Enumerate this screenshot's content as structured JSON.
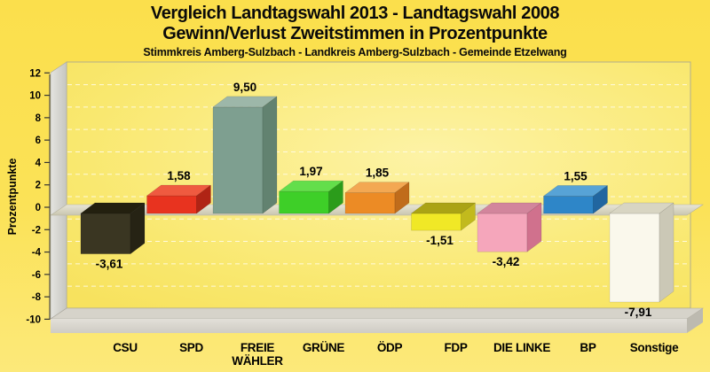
{
  "title": {
    "line1": "Vergleich Landtagswahl 2013 - Landtagswahl 2008",
    "line2": "Gewinn/Verlust Zweitstimmen in Prozentpunkte",
    "subtitle": "Stimmkreis Amberg-Sulzbach - Landkreis Amberg-Sulzbach - Gemeinde Etzelwang"
  },
  "colors": {
    "page_background_top": "#fbdf4c",
    "page_background_bottom": "#fce97a",
    "plot_background_light": "#fdf3a6",
    "plot_background_dark": "#f7e25e",
    "title_text": "#0a0a0a",
    "axis_text": "#000000",
    "wall_gray_light": "#e4e4e0",
    "wall_gray_dark": "#c6c6c0",
    "zero_plane_light": "#e8e5d6",
    "zero_plane_dark": "#c9c6b0",
    "gridline": "#fffce8"
  },
  "chart_data": {
    "type": "bar",
    "style": "3d-block-bars",
    "title": "Vergleich Landtagswahl 2013 - Landtagswahl 2008",
    "subtitle": "Gewinn/Verlust Zweitstimmen in Prozentpunkte",
    "caption": "Stimmkreis Amberg-Sulzbach - Landkreis Amberg-Sulzbach - Gemeinde Etzelwang",
    "categories": [
      "CSU",
      "SPD",
      "FREIE WÄHLER",
      "GRÜNE",
      "ÖDP",
      "FDP",
      "DIE LINKE",
      "BP",
      "Sonstige"
    ],
    "category_lines": [
      [
        "CSU"
      ],
      [
        "SPD"
      ],
      [
        "FREIE",
        "WÄHLER"
      ],
      [
        "GRÜNE"
      ],
      [
        "ÖDP"
      ],
      [
        "FDP"
      ],
      [
        "DIE LINKE"
      ],
      [
        "BP"
      ],
      [
        "Sonstige"
      ]
    ],
    "values": [
      -3.61,
      1.58,
      9.5,
      1.97,
      1.85,
      -1.51,
      -3.42,
      1.55,
      -7.91
    ],
    "value_labels": [
      "-3,61",
      "1,58",
      "9,50",
      "1,97",
      "1,85",
      "-1,51",
      "-3,42",
      "1,55",
      "-7,91"
    ],
    "bar_colors": [
      {
        "party": "CSU",
        "front": "#3a3622",
        "side": "#262314",
        "top": "#23200f"
      },
      {
        "party": "SPD",
        "front": "#e8331f",
        "side": "#b02415",
        "top": "#ef5a40"
      },
      {
        "party": "FREIE WÄHLER",
        "front": "#7e9f90",
        "side": "#628270",
        "top": "#9db7a9"
      },
      {
        "party": "GRÜNE",
        "front": "#3ecf28",
        "side": "#2b9c1b",
        "top": "#63de4b"
      },
      {
        "party": "ÖDP",
        "front": "#ec8b25",
        "side": "#c06c1b",
        "top": "#f3a852"
      },
      {
        "party": "FDP",
        "front": "#f0e826",
        "side": "#c2ba1d",
        "top": "#aaa315"
      },
      {
        "party": "DIE LINKE",
        "front": "#f5a6bb",
        "side": "#d0718d",
        "top": "#d2859c"
      },
      {
        "party": "BP",
        "front": "#2e86c8",
        "side": "#2166a0",
        "top": "#57a3d6"
      },
      {
        "party": "Sonstige",
        "front": "#faf8ec",
        "side": "#cbc8b6",
        "top": "#d8d5c2"
      }
    ],
    "xlabel": "",
    "ylabel": "Prozentpunkte",
    "ylim": [
      -10,
      12
    ],
    "yticks": [
      12,
      10,
      8,
      6,
      4,
      2,
      0,
      -2,
      -4,
      -6,
      -8,
      -10
    ],
    "ytick_labels": [
      "12",
      "10",
      "8",
      "6",
      "4",
      "2",
      "0",
      "-2",
      "-4",
      "-6",
      "-8",
      "-10"
    ],
    "grid": "horizontal-dashed",
    "legend": "none"
  }
}
